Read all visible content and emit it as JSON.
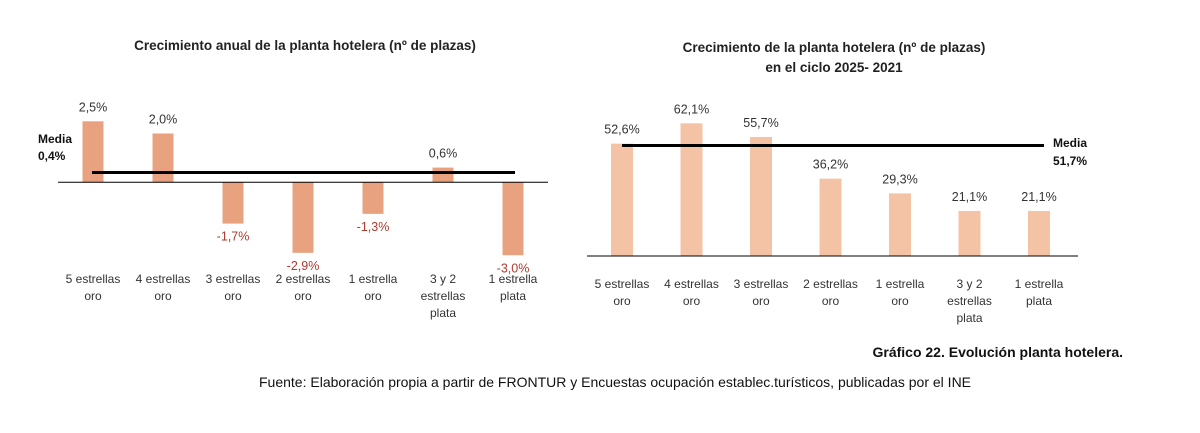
{
  "colors": {
    "bar": "#E9A27F",
    "bar_light": "#F4C3A6",
    "negative_label": "#B03A2E",
    "line": "#000000"
  },
  "chart_data": [
    {
      "type": "bar",
      "title": "Crecimiento anual de la planta hotelera (nº de plazas)",
      "categories": [
        "5 estrellas oro",
        "4 estrellas oro",
        "3 estrellas oro",
        "2 estrellas oro",
        "1 estrella oro",
        "3 y 2 estrellas plata",
        "1 estrella plata"
      ],
      "values": [
        2.5,
        2.0,
        -1.7,
        -2.9,
        -1.3,
        0.6,
        -3.0
      ],
      "labels": [
        "2,5%",
        "2,0%",
        "-1,7%",
        "-2,9%",
        "-1,3%",
        "0,6%",
        "-3,0%"
      ],
      "reference_line": {
        "label": "Media",
        "value": 0.4,
        "value_label": "0,4%"
      },
      "ylim": [
        -3.4,
        2.8
      ]
    },
    {
      "type": "bar",
      "title": "Crecimiento de la planta hotelera (nº de plazas)",
      "title_line2": "en el ciclo 2025- 2021",
      "categories": [
        "5 estrellas oro",
        "4 estrellas oro",
        "3 estrellas oro",
        "2 estrellas oro",
        "1 estrella oro",
        "3 y 2 estrellas plata",
        "1 estrella plata"
      ],
      "values": [
        52.6,
        62.1,
        55.7,
        36.2,
        29.3,
        21.1,
        21.1
      ],
      "labels": [
        "52,6%",
        "62,1%",
        "55,7%",
        "36,2%",
        "29,3%",
        "21,1%",
        "21,1%"
      ],
      "reference_line": {
        "label": "Media",
        "value": 51.7,
        "value_label": "51,7%"
      },
      "ylim": [
        0,
        66
      ]
    }
  ],
  "caption": {
    "title": "Gráfico 22. Evolución planta hotelera.",
    "source": "Fuente: Elaboración propia a partir de FRONTUR y Encuestas ocupación establec.turísticos, publicadas por el INE"
  }
}
